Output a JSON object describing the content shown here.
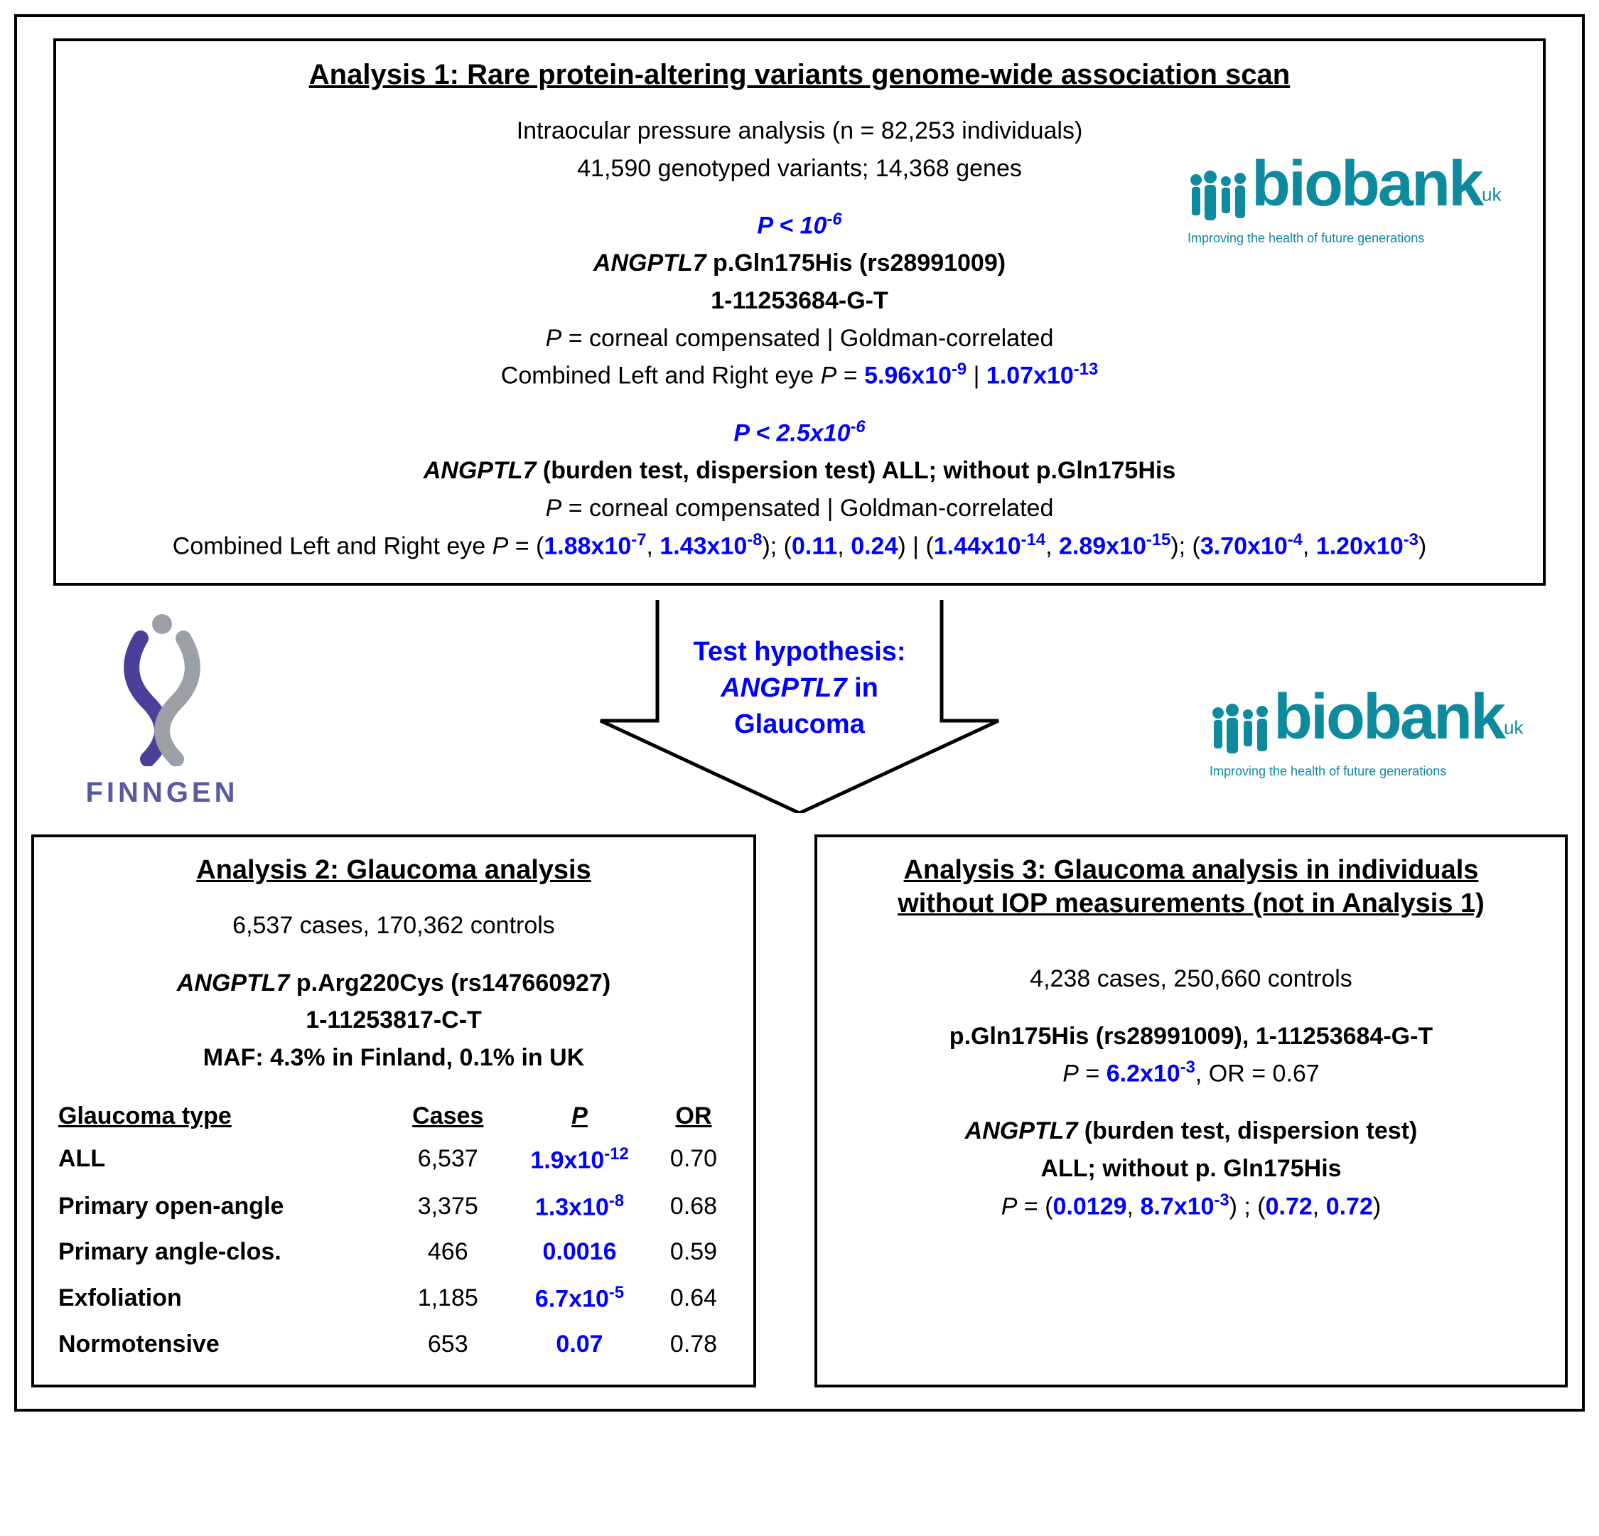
{
  "colors": {
    "blue": "#0000ff",
    "biobank": "#0d8a9e",
    "finngen_purple": "#5a5aa0",
    "finngen_grey": "#9aa0a6",
    "border": "#000000",
    "bg": "#ffffff"
  },
  "biobank": {
    "word": "biobank",
    "uk": "uk",
    "tagline": "Improving the health of future generations"
  },
  "finngen": {
    "label": "FINNGEN"
  },
  "arrow": {
    "line1": "Test hypothesis:",
    "line2_pre": "ANGPTL7",
    "line2_post": " in",
    "line3": "Glaucoma"
  },
  "a1": {
    "title": "Analysis 1: Rare protein-altering variants genome-wide association scan",
    "sub1": "Intraocular pressure analysis (n = 82,253 individuals)",
    "sub2": "41,590 genotyped variants; 14,368 genes",
    "thresh1_pre": "P",
    "thresh1_post": " < 10",
    "thresh1_exp": "-6",
    "gene1_pre": "ANGPTL7",
    "gene1_post": " p.Gln175His (rs28991009)",
    "loc1": "1-11253684-G-T",
    "pdesc_pre": "P",
    "pdesc_post": " = corneal compensated | Goldman-correlated",
    "comb1_label": "Combined Left and Right eye ",
    "comb1_P": "P",
    "comb1_eq": " = ",
    "comb1_v1a": "5.96x10",
    "comb1_v1e": "-9",
    "comb1_sep": " | ",
    "comb1_v2a": "1.07x10",
    "comb1_v2e": "-13",
    "thresh2_pre": "P",
    "thresh2_post": " < 2.5x10",
    "thresh2_exp": "-6",
    "gene2_pre": "ANGPTL7",
    "gene2_post": " (burden test, dispersion test) ALL; without p.Gln175His",
    "comb2_label": "Combined Left and Right eye ",
    "comb2_P": "P",
    "comb2_eq": " = (",
    "comb2_a1": "1.88x10",
    "comb2_a1e": "-7",
    "comb2_a2": "1.43x10",
    "comb2_a2e": "-8",
    "comb2_mid1": "); (",
    "comb2_b1": "0.11",
    "comb2_b2": "0.24",
    "comb2_mid2": ") | (",
    "comb2_c1": "1.44x10",
    "comb2_c1e": "-14",
    "comb2_c2": "2.89x10",
    "comb2_c2e": "-15",
    "comb2_mid3": "); (",
    "comb2_d1": "3.70x10",
    "comb2_d1e": "-4",
    "comb2_d2": "1.20x10",
    "comb2_d2e": "-3",
    "comb2_end": ")"
  },
  "a2": {
    "title": "Analysis 2: Glaucoma analysis",
    "sub": "6,537 cases, 170,362 controls",
    "gene_pre": "ANGPTL7",
    "gene_post": " p.Arg220Cys (rs147660927)",
    "loc": "1-11253817-C-T",
    "maf": "MAF: 4.3% in Finland, 0.1% in UK",
    "headers": {
      "c1": "Glaucoma type",
      "c2": "Cases",
      "c3": "P",
      "c4": "OR"
    },
    "rows": [
      {
        "type": "ALL",
        "cases": "6,537",
        "p_a": "1.9x10",
        "p_e": "-12",
        "or": "0.70"
      },
      {
        "type": "Primary open-angle",
        "cases": "3,375",
        "p_a": "1.3x10",
        "p_e": "-8",
        "or": "0.68"
      },
      {
        "type": "Primary angle-clos.",
        "cases": "466",
        "p_a": "0.0016",
        "p_e": "",
        "or": "0.59"
      },
      {
        "type": "Exfoliation",
        "cases": "1,185",
        "p_a": "6.7x10",
        "p_e": "-5",
        "or": "0.64"
      },
      {
        "type": "Normotensive",
        "cases": "653",
        "p_a": "0.07",
        "p_e": "",
        "or": "0.78"
      }
    ]
  },
  "a3": {
    "title1": "Analysis 3: Glaucoma analysis in individuals",
    "title2": "without IOP measurements (not in Analysis 1)",
    "sub": "4,238 cases, 250,660 controls",
    "var": "p.Gln175His (rs28991009), 1-11253684-G-T",
    "pline_P": "P",
    "pline_eq": " = ",
    "pline_v": "6.2x10",
    "pline_e": "-3",
    "pline_or": ", OR = 0.67",
    "gene_pre": "ANGPTL7",
    "gene_post": " (burden test, dispersion test)",
    "sub2": "ALL; without p. Gln175His",
    "res_P": "P",
    "res_eq": " = (",
    "res_a1": "0.0129",
    "res_a2": "8.7x10",
    "res_a2e": "-3",
    "res_mid": ") ; (",
    "res_b1": "0.72",
    "res_b2": "0.72",
    "res_end": ")"
  }
}
